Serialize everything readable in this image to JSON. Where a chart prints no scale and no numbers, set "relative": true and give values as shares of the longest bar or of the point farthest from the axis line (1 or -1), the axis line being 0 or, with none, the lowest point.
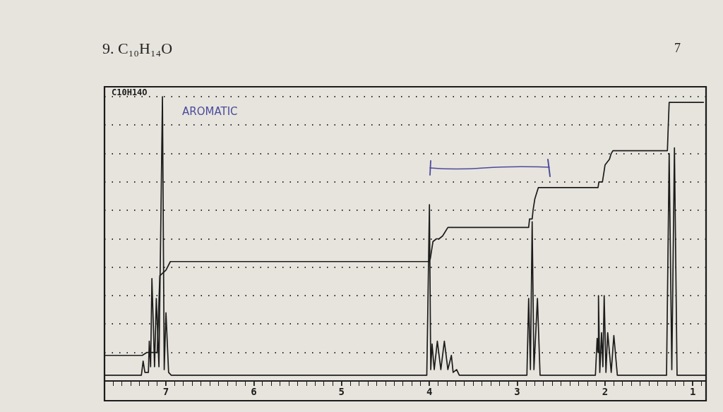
{
  "chart_data": {
    "type": "line",
    "title": "9. C₁₀H₁₄O",
    "relative": true,
    "grid": "y",
    "tick_labels": "x",
    "marker": "none",
    "xlim": [
      7.7,
      0.85
    ],
    "xticks": [
      {
        "value": 7.6,
        "label": null
      },
      {
        "value": 7.5,
        "label": null
      },
      {
        "value": 7.4,
        "label": null
      },
      {
        "value": 7.3,
        "label": null
      },
      {
        "value": 7.2,
        "label": null
      },
      {
        "value": 7.1,
        "label": null
      },
      7,
      {
        "value": 6.9,
        "label": null
      },
      {
        "value": 6.8,
        "label": null
      },
      {
        "value": 6.7,
        "label": null
      },
      {
        "value": 6.6,
        "label": null
      },
      {
        "value": 6.5,
        "label": null
      },
      {
        "value": 6.4,
        "label": null
      },
      {
        "value": 6.3,
        "label": null
      },
      {
        "value": 6.2,
        "label": null
      },
      {
        "value": 6.1,
        "label": null
      },
      6,
      {
        "value": 5.9,
        "label": null
      },
      {
        "value": 5.8,
        "label": null
      },
      {
        "value": 5.7,
        "label": null
      },
      {
        "value": 5.6,
        "label": null
      },
      {
        "value": 5.5,
        "label": null
      },
      {
        "value": 5.4,
        "label": null
      },
      {
        "value": 5.3,
        "label": null
      },
      {
        "value": 5.2,
        "label": null
      },
      {
        "value": 5.1,
        "label": null
      },
      5,
      {
        "value": 4.9,
        "label": null
      },
      {
        "value": 4.8,
        "label": null
      },
      {
        "value": 4.7,
        "label": null
      },
      {
        "value": 4.6,
        "label": null
      },
      {
        "value": 4.5,
        "label": null
      },
      {
        "value": 4.4,
        "label": null
      },
      {
        "value": 4.3,
        "label": null
      },
      {
        "value": 4.2,
        "label": null
      },
      {
        "value": 4.1,
        "label": null
      },
      4,
      {
        "value": 3.9,
        "label": null
      },
      {
        "value": 3.8,
        "label": null
      },
      {
        "value": 3.7,
        "label": null
      },
      {
        "value": 3.6,
        "label": null
      },
      {
        "value": 3.5,
        "label": null
      },
      {
        "value": 3.4,
        "label": null
      },
      {
        "value": 3.3,
        "label": null
      },
      {
        "value": 3.2,
        "label": null
      },
      {
        "value": 3.1,
        "label": null
      },
      3,
      {
        "value": 2.9,
        "label": null
      },
      {
        "value": 2.8,
        "label": null
      },
      {
        "value": 2.7,
        "label": null
      },
      {
        "value": 2.6,
        "label": null
      },
      {
        "value": 2.5,
        "label": null
      },
      {
        "value": 2.4,
        "label": null
      },
      {
        "value": 2.3,
        "label": null
      },
      {
        "value": 2.2,
        "label": null
      },
      {
        "value": 2.1,
        "label": null
      },
      2,
      {
        "value": 1.9,
        "label": null
      },
      {
        "value": 1.8,
        "label": null
      },
      {
        "value": 1.7,
        "label": null
      },
      {
        "value": 1.6,
        "label": null
      },
      {
        "value": 1.5,
        "label": null
      },
      {
        "value": 1.4,
        "label": null
      },
      {
        "value": 1.3,
        "label": null
      },
      {
        "value": 1.2,
        "label": null
      },
      {
        "value": 1.1,
        "label": null
      },
      1,
      {
        "value": 0.9,
        "label": null
      }
    ],
    "series": [
      {
        "color": "#1c1c1c",
        "x": [
          7.7,
          7.28,
          7.26,
          7.24,
          7.2,
          7.19,
          7.175,
          7.16,
          7.13,
          7.11,
          7.08,
          7.04,
          7.02,
          7.0,
          6.97,
          6.94,
          4.03,
          4.0,
          3.985,
          3.97,
          3.945,
          3.91,
          3.87,
          3.83,
          3.79,
          3.75,
          3.73,
          3.69,
          3.66,
          2.89,
          2.87,
          2.85,
          2.83,
          2.81,
          2.77,
          2.74,
          2.11,
          2.09,
          2.08,
          2.075,
          2.06,
          2.04,
          2.025,
          2.01,
          1.99,
          1.97,
          1.93,
          1.9,
          1.86,
          1.3,
          1.27,
          1.24,
          1.21,
          1.18,
          0.85
        ],
        "values": [
          0.02,
          0.02,
          0.07,
          0.03,
          0.03,
          0.14,
          0.05,
          0.36,
          0.05,
          0.29,
          0.05,
          1,
          0.04,
          0.24,
          0.03,
          0.02,
          0.02,
          0.62,
          0.04,
          0.13,
          0.04,
          0.14,
          0.04,
          0.14,
          0.04,
          0.09,
          0.03,
          0.04,
          0.02,
          0.02,
          0.29,
          0.04,
          0.56,
          0.04,
          0.29,
          0.02,
          0.02,
          0.15,
          0.1,
          0.3,
          0.03,
          0.17,
          0.05,
          0.3,
          0.03,
          0.17,
          0.03,
          0.16,
          0.02,
          0.02,
          0.8,
          0.04,
          0.82,
          0.02,
          0.02
        ]
      },
      {
        "color": "#1c1c1c",
        "x": [
          7.7,
          7.27,
          7.22,
          7.1,
          7.07,
          7.0,
          6.95,
          4.01,
          3.99,
          3.96,
          3.92,
          3.89,
          3.85,
          3.83,
          3.79,
          2.87,
          2.86,
          2.83,
          2.82,
          2.8,
          2.79,
          2.76,
          2.08,
          2.07,
          2.03,
          2.01,
          2.0,
          1.95,
          1.93,
          1.91,
          1.29,
          1.28,
          1.27,
          0.88
        ],
        "values": [
          0.09,
          0.09,
          0.1,
          0.1,
          0.37,
          0.39,
          0.42,
          0.42,
          0.43,
          0.49,
          0.5,
          0.5,
          0.51,
          0.52,
          0.54,
          0.54,
          0.57,
          0.57,
          0.6,
          0.64,
          0.65,
          0.68,
          0.68,
          0.7,
          0.7,
          0.74,
          0.76,
          0.78,
          0.8,
          0.81,
          0.81,
          0.9,
          0.98,
          0.98
        ]
      }
    ],
    "annotations": [
      "C10H14O",
      "AROMATIC",
      "7"
    ]
  }
}
